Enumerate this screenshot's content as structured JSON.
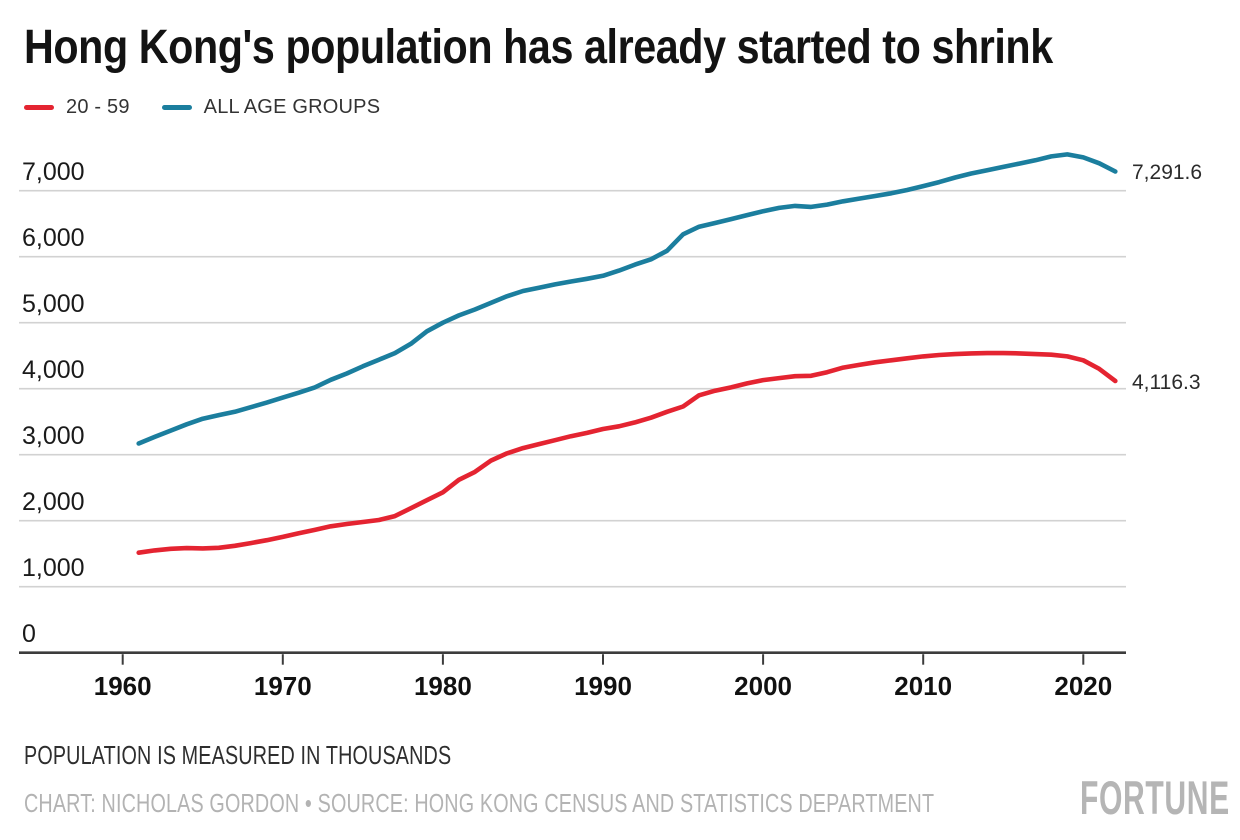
{
  "header": {
    "title": "Hong Kong's population has already started to shrink"
  },
  "legend": {
    "items": [
      {
        "label": "20 - 59",
        "color": "#e42431"
      },
      {
        "label": "ALL AGE GROUPS",
        "color": "#1b7e9e"
      }
    ]
  },
  "chart_data": {
    "type": "line",
    "title": "Hong Kong's population has already started to shrink",
    "xlabel": "",
    "ylabel": "",
    "unit_note": "POPULATION IS MEASURED IN THOUSANDS",
    "grid": true,
    "legend_position": "top-left",
    "x": {
      "start_year": 1961,
      "end_year": 2022,
      "step": 1
    },
    "x_tick_values": [
      1960,
      1970,
      1980,
      1990,
      2000,
      2010,
      2020
    ],
    "x_tick_labels": [
      "1960",
      "1970",
      "1980",
      "1990",
      "2000",
      "2010",
      "2020"
    ],
    "y_tick_values": [
      7000,
      6000,
      5000,
      4000,
      3000,
      2000,
      1000,
      0
    ],
    "y_tick_labels": [
      "7,000",
      "6,000",
      "5,000",
      "4,000",
      "3,000",
      "2,000",
      "1,000",
      "0"
    ],
    "ylim": [
      0,
      7600
    ],
    "series": [
      {
        "name": "20 - 59",
        "color": "#e42431",
        "end_label": "4,116.3",
        "end_value": 4116.3,
        "values": [
          1515,
          1550,
          1575,
          1585,
          1580,
          1590,
          1620,
          1660,
          1705,
          1755,
          1810,
          1860,
          1915,
          1950,
          1980,
          2010,
          2070,
          2190,
          2310,
          2430,
          2620,
          2740,
          2910,
          3020,
          3100,
          3160,
          3220,
          3280,
          3330,
          3390,
          3430,
          3490,
          3560,
          3650,
          3730,
          3900,
          3970,
          4020,
          4080,
          4130,
          4160,
          4190,
          4195,
          4250,
          4320,
          4360,
          4400,
          4430,
          4460,
          4490,
          4510,
          4525,
          4535,
          4540,
          4540,
          4535,
          4525,
          4515,
          4490,
          4430,
          4300,
          4116.3
        ]
      },
      {
        "name": "ALL AGE GROUPS",
        "color": "#1b7e9e",
        "end_label": "7,291.6",
        "end_value": 7291.6,
        "values": [
          3170,
          3270,
          3365,
          3460,
          3545,
          3600,
          3650,
          3720,
          3790,
          3865,
          3940,
          4020,
          4135,
          4230,
          4340,
          4440,
          4540,
          4680,
          4870,
          5000,
          5110,
          5200,
          5300,
          5400,
          5480,
          5530,
          5580,
          5625,
          5665,
          5710,
          5790,
          5880,
          5960,
          6090,
          6340,
          6455,
          6510,
          6570,
          6630,
          6690,
          6740,
          6770,
          6755,
          6790,
          6840,
          6880,
          6920,
          6960,
          7010,
          7070,
          7130,
          7200,
          7260,
          7310,
          7360,
          7410,
          7460,
          7520,
          7550,
          7505,
          7415,
          7291.6
        ]
      }
    ]
  },
  "footer": {
    "note": "POPULATION IS MEASURED IN THOUSANDS",
    "credit": "CHART: NICHOLAS GORDON • SOURCE: HONG KONG CENSUS AND STATISTICS DEPARTMENT",
    "logo": "FORTUNE"
  },
  "colors": {
    "background": "#ffffff",
    "grid": "#d2d2d2",
    "axis": "#3c3c3c",
    "text": "#1a1a1a"
  }
}
